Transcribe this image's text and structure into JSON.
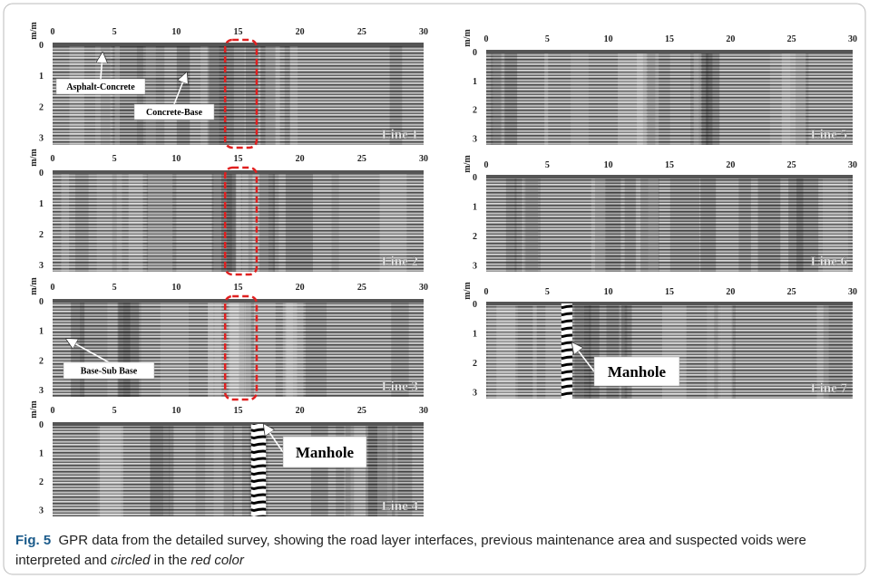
{
  "panels": [
    {
      "label": "Line 1",
      "y_axis_label": "m/m",
      "xticks": [
        0,
        5,
        10,
        15,
        20,
        25,
        30
      ],
      "yticks": [
        0,
        1,
        2,
        3
      ],
      "annotations": [
        "Asphalt-Concrete",
        "Concrete-Base"
      ]
    },
    {
      "label": "Line 2",
      "y_axis_label": "m/m",
      "xticks": [
        0,
        5,
        10,
        15,
        20,
        25,
        30
      ],
      "yticks": [
        0,
        1,
        2,
        3
      ],
      "annotations": []
    },
    {
      "label": "Line 3",
      "y_axis_label": "m/m",
      "xticks": [
        0,
        5,
        10,
        15,
        20,
        25,
        30
      ],
      "yticks": [
        0,
        1,
        2,
        3
      ],
      "annotations": [
        "Base-Sub Base"
      ]
    },
    {
      "label": "Line 4",
      "y_axis_label": "m/m",
      "xticks": [
        0,
        5,
        10,
        15,
        20,
        25,
        30
      ],
      "yticks": [
        0,
        1,
        2,
        3
      ],
      "annotations": [
        "Manhole"
      ]
    },
    {
      "label": "Line 5",
      "y_axis_label": "m/m",
      "xticks": [
        0,
        5,
        10,
        15,
        20,
        25,
        30
      ],
      "yticks": [
        0,
        1,
        2,
        3
      ],
      "annotations": []
    },
    {
      "label": "Line 6",
      "y_axis_label": "m/m",
      "xticks": [
        0,
        5,
        10,
        15,
        20,
        25,
        30
      ],
      "yticks": [
        0,
        1,
        2,
        3
      ],
      "annotations": []
    },
    {
      "label": "Line 7",
      "y_axis_label": "m/m",
      "xticks": [
        0,
        5,
        10,
        15,
        20,
        25,
        30
      ],
      "yticks": [
        0,
        1,
        2,
        3
      ],
      "annotations": [
        "Manhole"
      ]
    }
  ],
  "caption": {
    "label": "Fig. 5",
    "text": "GPR data from the detailed survey, showing the road layer interfaces, previous maintenance area and suspected voids were interpreted and ",
    "emph1": "circled",
    "text2": " in the ",
    "emph2": "red color"
  }
}
